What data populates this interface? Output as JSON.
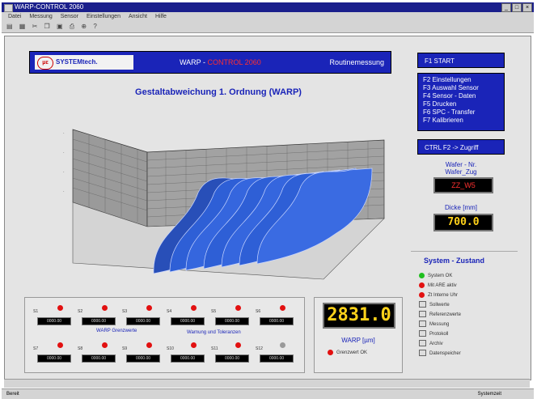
{
  "window": {
    "title": "WARP-CONTROL 2060"
  },
  "menu": [
    "Datei",
    "Messung",
    "Sensor",
    "Einstellungen",
    "Ansicht",
    "Hilfe"
  ],
  "header": {
    "logo_text": "SYSTEMtech.",
    "logo_mark": "με",
    "product_prefix": "WARP - ",
    "product_highlight": "CONTROL 2060",
    "mode": "Routinemessung"
  },
  "chart_title": "Gestaltabweichung 1. Ordnung (WARP)",
  "chart_data": {
    "type": "surface",
    "title": "Gestaltabweichung 1. Ordnung (WARP)",
    "ridges": 7,
    "series_color": "#2e5fd6"
  },
  "function_keys": {
    "f1": "F1 START",
    "menu": [
      "F2 Einstellungen",
      "F3 Auswahl Sensor",
      "F4 Sensor - Daten",
      "F5 Drucken",
      "F6 SPC - Transfer",
      "F7 Kalibrieren"
    ],
    "ctrl": "CTRL F2 -> Zugriff"
  },
  "readouts": {
    "wafer_label": "Wafer - Nr.",
    "wafer_label_2": "Wafer_Zug",
    "wafer_value": "ZZ_W5",
    "thickness_label": "Dicke [mm]",
    "thickness_value": "700.0"
  },
  "status": {
    "title": "System - Zustand",
    "items": [
      {
        "text": "System OK",
        "kind": "dot",
        "color": "#1fbf1f"
      },
      {
        "text": "Mit ARE aktiv",
        "kind": "dot",
        "color": "#e21010"
      },
      {
        "text": "Zt Interne Uhr",
        "kind": "dot",
        "color": "#e21010"
      },
      {
        "text": "Sollwerte",
        "kind": "sq"
      },
      {
        "text": "Referenzwerte",
        "kind": "sq"
      },
      {
        "text": "Messung",
        "kind": "sq"
      },
      {
        "text": "Protokoll",
        "kind": "sq"
      },
      {
        "text": "Archiv",
        "kind": "sq"
      },
      {
        "text": "Datenspeicher",
        "kind": "sq"
      }
    ]
  },
  "sensors": {
    "top": [
      {
        "n": "S1",
        "v": "0000.00"
      },
      {
        "n": "S2",
        "v": "0000.00"
      },
      {
        "n": "S3",
        "v": "0000.00"
      },
      {
        "n": "S4",
        "v": "0000.00"
      },
      {
        "n": "S5",
        "v": "0000.00"
      },
      {
        "n": "S6",
        "v": "0000.00"
      }
    ],
    "bottom": [
      {
        "n": "S7",
        "v": "0000.00"
      },
      {
        "n": "S8",
        "v": "0000.00"
      },
      {
        "n": "S9",
        "v": "0000.00"
      },
      {
        "n": "S10",
        "v": "0000.00"
      },
      {
        "n": "S11",
        "v": "0000.00"
      },
      {
        "n": "S12",
        "v": "0000.00"
      }
    ],
    "label_left": "WARP Grenzwerte",
    "label_right": "Warnung und Toleranzen"
  },
  "warp": {
    "value": "2831.0",
    "label": "WARP [µm]",
    "toggle": "Grenzwert OK"
  },
  "statusbar": {
    "left": "Bereit",
    "right": "Systemzeit"
  }
}
